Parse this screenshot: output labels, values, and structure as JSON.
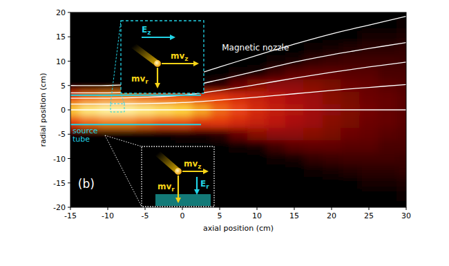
{
  "chart_data": {
    "type": "heatmap",
    "xlabel": "axial position (cm)",
    "ylabel": "radial position (cm)",
    "xlim": [
      -15,
      30
    ],
    "ylim": [
      -20,
      20
    ],
    "xticks": [
      -15,
      -10,
      -5,
      0,
      5,
      10,
      15,
      20,
      25,
      30
    ],
    "yticks": [
      -20,
      -15,
      -10,
      -5,
      0,
      5,
      10,
      15,
      20
    ],
    "grid": false,
    "density": {
      "x": [
        -15,
        -12.5,
        -10,
        -7.5,
        -5,
        -2.5,
        0,
        2.5,
        5,
        7.5,
        10,
        12.5,
        15,
        17.5,
        20,
        22.5,
        25,
        27.5,
        30
      ],
      "y": [
        20,
        17.5,
        15,
        12.5,
        10,
        7.5,
        5,
        2.5,
        0,
        -2.5,
        -5,
        -7.5,
        -10,
        -12.5,
        -15,
        -17.5,
        -20
      ],
      "cells": [
        [
          0,
          0,
          0,
          0,
          0,
          0,
          0,
          0,
          0,
          0,
          0,
          0,
          0,
          0,
          0,
          0,
          0,
          0,
          0
        ],
        [
          0,
          0,
          0,
          0,
          0,
          0,
          0,
          0,
          0,
          0,
          0,
          0,
          0,
          0,
          0,
          0,
          0,
          0.01,
          0.03
        ],
        [
          0,
          0,
          0,
          0,
          0,
          0,
          0,
          0,
          0,
          0,
          0,
          0,
          0,
          0,
          0,
          0.01,
          0.04,
          0.05,
          0.06
        ],
        [
          0,
          0,
          0,
          0,
          0,
          0,
          0,
          0,
          0,
          0,
          0,
          0,
          0,
          0.02,
          0.05,
          0.07,
          0.09,
          0.09,
          0.1
        ],
        [
          0,
          0,
          0,
          0,
          0,
          0,
          0,
          0,
          0,
          0,
          0,
          0.02,
          0.05,
          0.1,
          0.12,
          0.13,
          0.13,
          0.13,
          0.12
        ],
        [
          0,
          0,
          0,
          0,
          0,
          0,
          0,
          0,
          0,
          0.03,
          0.05,
          0.13,
          0.17,
          0.18,
          0.18,
          0.17,
          0.17,
          0.15,
          0.15
        ],
        [
          0,
          0,
          0,
          0,
          0,
          0,
          0.05,
          0.05,
          0.09,
          0.19,
          0.24,
          0.25,
          0.25,
          0.24,
          0.22,
          0.2,
          0.19,
          0.17,
          0.16
        ],
        [
          0.45,
          0.55,
          0.6,
          0.6,
          0.55,
          0.5,
          0.5,
          0.43,
          0.44,
          0.4,
          0.36,
          0.33,
          0.29,
          0.27,
          0.24,
          0.22,
          0.2,
          0.19,
          0.17
        ],
        [
          0.8,
          0.95,
          1.0,
          1.0,
          0.95,
          0.9,
          0.85,
          0.7,
          0.55,
          0.47,
          0.4,
          0.35,
          0.31,
          0.28,
          0.25,
          0.23,
          0.21,
          0.19,
          0.17
        ],
        [
          0.45,
          0.55,
          0.6,
          0.6,
          0.55,
          0.5,
          0.5,
          0.43,
          0.44,
          0.4,
          0.36,
          0.33,
          0.29,
          0.27,
          0.24,
          0.22,
          0.2,
          0.19,
          0.17
        ],
        [
          0,
          0,
          0,
          0,
          0,
          0,
          0.05,
          0.05,
          0.09,
          0.19,
          0.24,
          0.25,
          0.25,
          0.24,
          0.22,
          0.2,
          0.19,
          0.17,
          0.16
        ],
        [
          0,
          0,
          0,
          0,
          0,
          0,
          0,
          0,
          0,
          0.03,
          0.05,
          0.13,
          0.17,
          0.18,
          0.18,
          0.17,
          0.17,
          0.15,
          0.15
        ],
        [
          0,
          0,
          0,
          0,
          0,
          0,
          0,
          0,
          0,
          0,
          0,
          0.02,
          0.05,
          0.1,
          0.12,
          0.13,
          0.13,
          0.13,
          0.12
        ],
        [
          0,
          0,
          0,
          0,
          0,
          0,
          0,
          0,
          0,
          0,
          0,
          0,
          0,
          0.02,
          0.05,
          0.07,
          0.09,
          0.09,
          0.1
        ],
        [
          0,
          0,
          0,
          0,
          0,
          0,
          0,
          0,
          0,
          0,
          0,
          0,
          0,
          0,
          0,
          0.01,
          0.04,
          0.05,
          0.06
        ],
        [
          0,
          0,
          0,
          0,
          0,
          0,
          0,
          0,
          0,
          0,
          0,
          0,
          0,
          0,
          0,
          0,
          0,
          0.01,
          0.03
        ],
        [
          0,
          0,
          0,
          0,
          0,
          0,
          0,
          0,
          0,
          0,
          0,
          0,
          0,
          0,
          0,
          0,
          0,
          0,
          0
        ]
      ]
    },
    "field_lines": {
      "color": "#ffffff",
      "lines": [
        {
          "x": [
            -15,
            -10,
            -5,
            0,
            5,
            10,
            15,
            20,
            25,
            30
          ],
          "y": [
            0,
            0,
            0,
            0,
            0,
            0,
            0,
            0,
            0,
            0
          ]
        },
        {
          "x": [
            -15,
            -10,
            -5,
            0,
            5,
            10,
            15,
            20,
            25,
            30
          ],
          "y": [
            1.2,
            1.2,
            1.3,
            1.5,
            2.0,
            2.6,
            3.3,
            4.0,
            4.6,
            5.2
          ]
        },
        {
          "x": [
            -15,
            -10,
            -5,
            0,
            5,
            10,
            15,
            20,
            25,
            30
          ],
          "y": [
            2.4,
            2.4,
            2.6,
            3.0,
            4.0,
            5.2,
            6.5,
            7.7,
            8.8,
            9.8
          ]
        },
        {
          "x": [
            -15,
            -10,
            -5,
            0,
            5,
            10,
            15,
            20,
            25,
            30
          ],
          "y": [
            3.5,
            3.5,
            3.8,
            4.6,
            6.2,
            8.0,
            9.8,
            11.3,
            12.6,
            13.8
          ]
        },
        {
          "x": [
            -15,
            -10,
            -5,
            0,
            5,
            10,
            15,
            20,
            25,
            30
          ],
          "y": [
            5.0,
            5.0,
            5.4,
            6.5,
            8.8,
            11.2,
            13.5,
            15.6,
            17.4,
            19.2
          ]
        }
      ]
    },
    "source_tube": {
      "label": "source tube",
      "color": "#22d3e6",
      "x": [
        -15,
        2.5
      ],
      "radius": 3
    },
    "annotations": [
      {
        "text": "Magnetic nozzle",
        "x": 5.3,
        "y": 12.2
      },
      {
        "text": "(b)",
        "x": -14,
        "y": -16
      }
    ],
    "upper_inset": {
      "field_label": "Ez",
      "momentum_labels": [
        "mvz",
        "mvr"
      ]
    },
    "lower_inset": {
      "field_label": "Er",
      "momentum_labels": [
        "mvz",
        "mvr"
      ]
    }
  }
}
